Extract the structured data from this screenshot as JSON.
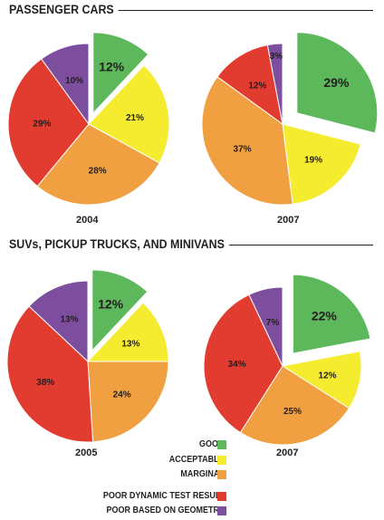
{
  "sections": [
    {
      "title": "PASSENGER CARS"
    },
    {
      "title": "SUVs, PICKUP TRUCKS, AND MINIVANS"
    }
  ],
  "legend": [
    {
      "label": "GOOD",
      "color": "#5cb85a"
    },
    {
      "label": "ACCEPTABLE",
      "color": "#f5ec2f"
    },
    {
      "label": "MARGINAL",
      "color": "#f0a040"
    },
    {
      "label": "POOR DYNAMIC TEST RESULT",
      "color": "#e23b30"
    },
    {
      "label": "POOR BASED ON GEOMETRY",
      "color": "#7d4e9e"
    }
  ],
  "chart_data": [
    {
      "type": "pie",
      "group": "PASSENGER CARS",
      "title": "2004",
      "categories": [
        "GOOD",
        "ACCEPTABLE",
        "MARGINAL",
        "POOR DYNAMIC TEST RESULT",
        "POOR BASED ON GEOMETRY"
      ],
      "values": [
        12,
        21,
        28,
        29,
        10
      ],
      "labels": [
        "12%",
        "21%",
        "28%",
        "29%",
        "10%"
      ],
      "exploded": "GOOD"
    },
    {
      "type": "pie",
      "group": "PASSENGER CARS",
      "title": "2007",
      "categories": [
        "GOOD",
        "ACCEPTABLE",
        "MARGINAL",
        "POOR DYNAMIC TEST RESULT",
        "POOR BASED ON GEOMETRY"
      ],
      "values": [
        29,
        19,
        37,
        12,
        3
      ],
      "labels": [
        "29%",
        "19%",
        "37%",
        "12%",
        "3%"
      ],
      "exploded": "GOOD"
    },
    {
      "type": "pie",
      "group": "SUVs, PICKUP TRUCKS, AND MINIVANS",
      "title": "2005",
      "categories": [
        "GOOD",
        "ACCEPTABLE",
        "MARGINAL",
        "POOR DYNAMIC TEST RESULT",
        "POOR BASED ON GEOMETRY"
      ],
      "values": [
        12,
        13,
        24,
        38,
        13
      ],
      "labels": [
        "12%",
        "13%",
        "24%",
        "38%",
        "13%"
      ],
      "exploded": "GOOD"
    },
    {
      "type": "pie",
      "group": "SUVs, PICKUP TRUCKS, AND MINIVANS",
      "title": "2007",
      "categories": [
        "GOOD",
        "ACCEPTABLE",
        "MARGINAL",
        "POOR DYNAMIC TEST RESULT",
        "POOR BASED ON GEOMETRY"
      ],
      "values": [
        22,
        12,
        25,
        34,
        7
      ],
      "labels": [
        "22%",
        "12%",
        "25%",
        "34%",
        "7%"
      ],
      "exploded": "GOOD"
    }
  ]
}
